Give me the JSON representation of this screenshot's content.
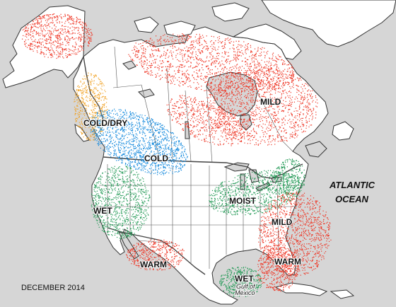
{
  "labels": {
    "mild_north": "MILD",
    "cold_dry": "COLD/DRY",
    "cold": "COLD",
    "wet": "WET",
    "moist": "MOIST",
    "mild_east": "MILD",
    "warm_west": "WARM",
    "warm_east": "WARM",
    "wet_gulf": "WET",
    "gulf_line1": "Gulf of",
    "gulf_line2": "Mexico",
    "ocean_line1": "ATLANTIC",
    "ocean_line2": "OCEAN",
    "date": "DECEMBER 2014"
  },
  "colors": {
    "ocean": "#d6d6d6",
    "land": "#ffffff",
    "mild_warm": "#ee3322",
    "cold": "#1188dd",
    "dry": "#f0a020",
    "wet_moist": "#229955",
    "border": "#333333"
  }
}
